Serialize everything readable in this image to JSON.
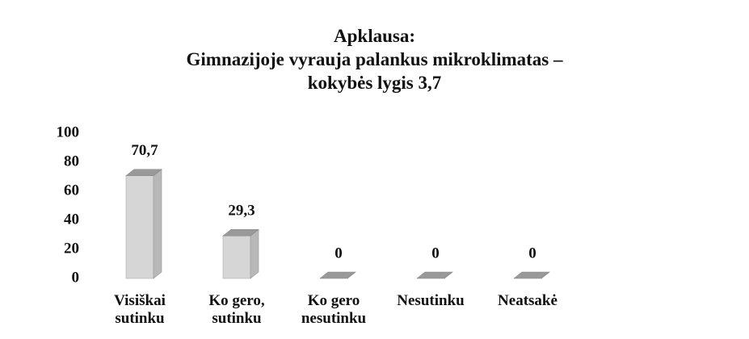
{
  "chart_data": {
    "type": "bar",
    "title": "Apklausa:\nGimnazijoje vyrauja palankus mikroklimatas –\nkokybės lygis 3,7",
    "categories": [
      "Visiškai\nsutinku",
      "Ko gero,\nsutinku",
      "Ko gero\nnesutinku",
      "Nesutinku",
      "Neatsakė"
    ],
    "values": [
      70.7,
      29.3,
      0,
      0,
      0
    ],
    "value_labels": [
      "70,7",
      "29,3",
      "0",
      "0",
      "0"
    ],
    "color": "#d6d6d6",
    "ylim": [
      0,
      100
    ],
    "yticks": [
      0,
      20,
      40,
      60,
      80,
      100
    ],
    "grid": false
  }
}
